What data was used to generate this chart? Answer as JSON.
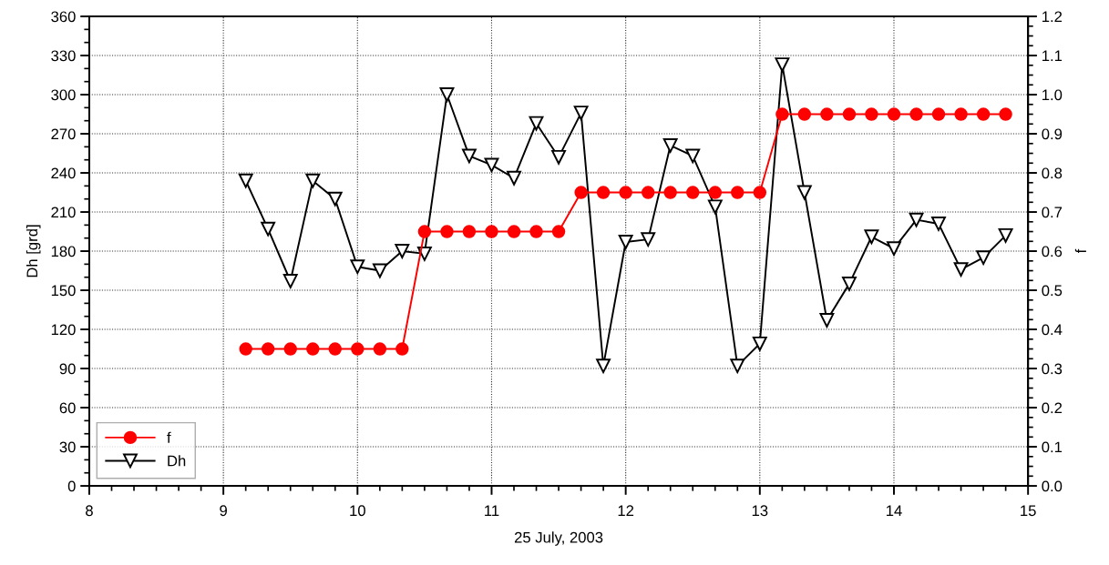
{
  "chart_data": {
    "type": "line",
    "xlabel": "25 July, 2003",
    "ylabel": "Dh [grd]",
    "y2label": "f",
    "x": [
      9.167,
      9.333,
      9.5,
      9.667,
      9.833,
      10,
      10.167,
      10.333,
      10.5,
      10.667,
      10.833,
      11,
      11.167,
      11.333,
      11.5,
      11.667,
      11.833,
      12,
      12.167,
      12.333,
      12.5,
      12.667,
      12.833,
      13,
      13.167,
      13.333,
      13.5,
      13.667,
      13.833,
      14,
      14.167,
      14.333,
      14.5,
      14.667,
      14.833
    ],
    "series": [
      {
        "name": "f",
        "color": "#ff0000",
        "axis": "y2",
        "marker": "circle",
        "values": [
          0.35,
          0.35,
          0.35,
          0.35,
          0.35,
          0.35,
          0.35,
          0.35,
          0.65,
          0.65,
          0.65,
          0.65,
          0.65,
          0.65,
          0.65,
          0.75,
          0.75,
          0.75,
          0.75,
          0.75,
          0.75,
          0.75,
          0.75,
          0.75,
          0.95,
          0.95,
          0.95,
          0.95,
          0.95,
          0.95,
          0.95,
          0.95,
          0.95,
          0.95,
          0.95
        ]
      },
      {
        "name": "Dh",
        "color": "#000000",
        "axis": "y",
        "marker": "triangle",
        "values": [
          234,
          197,
          157,
          234,
          220,
          168,
          165,
          180,
          178,
          300,
          253,
          246,
          236,
          278,
          252,
          286,
          92,
          187,
          189,
          261,
          253,
          214,
          92,
          109,
          323,
          225,
          127,
          155,
          191,
          182,
          204,
          201,
          166,
          175,
          192
        ]
      }
    ],
    "xlim": [
      8,
      15
    ],
    "xticks": [
      8,
      9,
      10,
      11,
      12,
      13,
      14,
      15
    ],
    "ylim": [
      0,
      360
    ],
    "yticks": [
      0,
      30,
      60,
      90,
      120,
      150,
      180,
      210,
      240,
      270,
      300,
      330,
      360
    ],
    "y2lim": [
      0,
      1.2
    ],
    "y2ticks": [
      {
        "value": 0,
        "label": "0.0"
      },
      0.1,
      0.2,
      0.3,
      0.4,
      0.5,
      0.6,
      0.7,
      0.8,
      0.9,
      {
        "value": 1,
        "label": "1.0"
      },
      1.1,
      1.2
    ],
    "grid": true,
    "legend": "bottom left"
  }
}
